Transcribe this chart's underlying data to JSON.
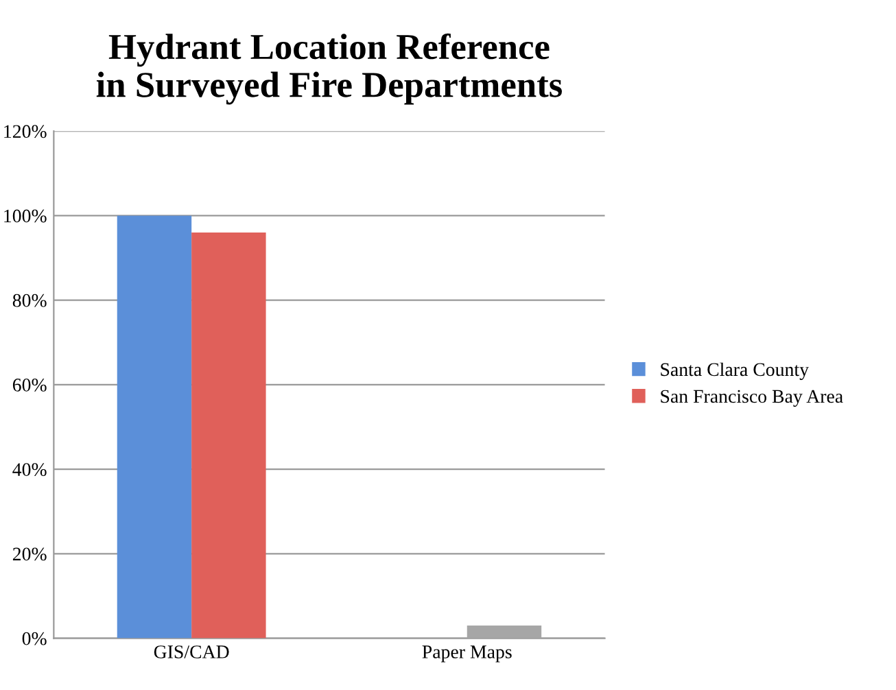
{
  "chart_data": {
    "type": "bar",
    "title": "Hydrant Location Reference\nin Surveyed Fire Departments",
    "categories": [
      "GIS/CAD",
      "Paper Maps"
    ],
    "series": [
      {
        "name": "Santa Clara County",
        "color": "#5b8fd9",
        "values": [
          100,
          0
        ]
      },
      {
        "name": "San Francisco Bay Area",
        "color": "#e0605a",
        "colors": [
          "#e0605a",
          "#a6a6a6"
        ],
        "values": [
          96,
          3
        ]
      }
    ],
    "ylim": [
      0,
      120
    ],
    "yticks": [
      {
        "value": 0,
        "label": "0%"
      },
      {
        "value": 20,
        "label": "20%"
      },
      {
        "value": 40,
        "label": "40%"
      },
      {
        "value": 60,
        "label": "60%"
      },
      {
        "value": 80,
        "label": "80%"
      },
      {
        "value": 100,
        "label": "100%"
      },
      {
        "value": 120,
        "label": "120%"
      }
    ],
    "grid": "y",
    "legend": "right"
  }
}
